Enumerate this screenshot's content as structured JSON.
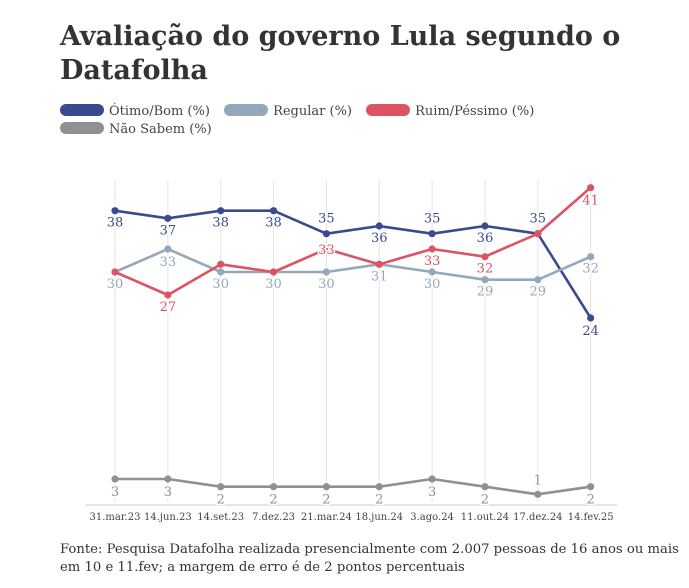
{
  "title": "Avaliação do governo Lula segundo o Datafolha",
  "source": "Fonte: Pesquisa Datafolha realizada presencialmente com 2.007 pessoas de 16 anos ou mais em 10 e 11.fev; a margem de erro é de 2 pontos percentuais",
  "legend": [
    {
      "label": "Ótimo/Bom (%)",
      "color": "#3b4a8f"
    },
    {
      "label": "Regular (%)",
      "color": "#93a9bb"
    },
    {
      "label": "Ruim/Péssimo (%)",
      "color": "#de5364"
    },
    {
      "label": "Não Sabem (%)",
      "color": "#909090"
    }
  ],
  "chart_data": {
    "type": "line",
    "title": "Avaliação do governo Lula segundo o Datafolha",
    "categories": [
      "31.mar.23",
      "14.jun.23",
      "14.set.23",
      "7.dez.23",
      "21.mar.24",
      "18.jun.24",
      "3.ago.24",
      "11.out.24",
      "17.dez.24",
      "14.fev.25"
    ],
    "series": [
      {
        "name": "Ótimo/Bom (%)",
        "color": "#3b4a8f",
        "values": [
          38,
          37,
          38,
          38,
          35,
          36,
          35,
          36,
          35,
          24
        ]
      },
      {
        "name": "Regular (%)",
        "color": "#93a9bb",
        "values": [
          30,
          33,
          30,
          30,
          30,
          31,
          30,
          29,
          29,
          32
        ]
      },
      {
        "name": "Ruim/Péssimo (%)",
        "color": "#de5364",
        "values": [
          30,
          27,
          31,
          30,
          33,
          31,
          33,
          32,
          35,
          41
        ]
      },
      {
        "name": "Não Sabem (%)",
        "color": "#909090",
        "values": [
          3,
          3,
          2,
          2,
          2,
          2,
          3,
          2,
          1,
          2
        ]
      }
    ],
    "ylim": [
      0,
      42
    ],
    "grid": "vertical",
    "legend_position": "top-left",
    "labels_shown": {
      "Ótimo/Bom (%)": [
        true,
        true,
        true,
        true,
        true,
        true,
        true,
        true,
        true,
        true
      ],
      "Regular (%)": [
        true,
        true,
        true,
        true,
        true,
        true,
        true,
        true,
        true,
        true
      ],
      "Ruim/Péssimo (%)": [
        false,
        true,
        false,
        false,
        true,
        false,
        true,
        true,
        false,
        true
      ],
      "Não Sabem (%)": [
        true,
        true,
        true,
        true,
        true,
        true,
        true,
        true,
        true,
        true
      ]
    }
  }
}
